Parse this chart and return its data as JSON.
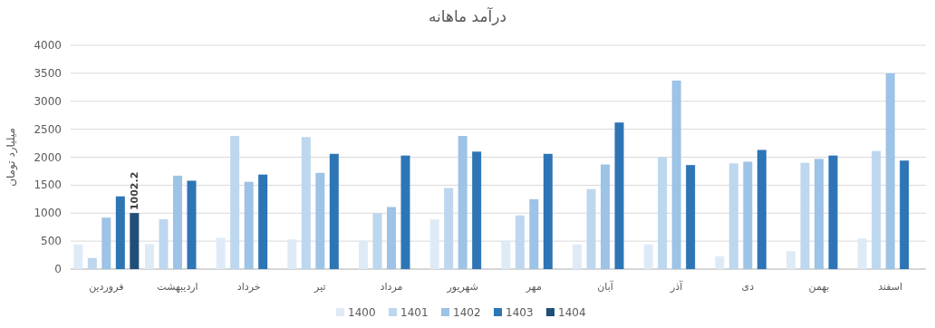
{
  "chart_data": {
    "type": "bar",
    "title": "درآمد ماهانه",
    "ylabel": "میلیارد تومان",
    "categories": [
      "فروردین",
      "اردیبهشت",
      "خرداد",
      "تیر",
      "مرداد",
      "شهریور",
      "مهر",
      "آبان",
      "آذر",
      "دی",
      "بهمن",
      "اسفند"
    ],
    "series": [
      {
        "name": "1400",
        "color": "#deebf7",
        "values": [
          440,
          450,
          560,
          530,
          510,
          890,
          510,
          440,
          440,
          230,
          320,
          550
        ]
      },
      {
        "name": "1401",
        "color": "#bdd7ee",
        "values": [
          200,
          890,
          2380,
          2360,
          1000,
          1450,
          960,
          1430,
          2000,
          1890,
          1900,
          2110
        ]
      },
      {
        "name": "1402",
        "color": "#9dc3e6",
        "values": [
          920,
          1670,
          1560,
          1720,
          1110,
          2380,
          1250,
          1870,
          3370,
          1920,
          1970,
          3500
        ]
      },
      {
        "name": "1403",
        "color": "#2e75b6",
        "values": [
          1300,
          1580,
          1690,
          2060,
          2030,
          2100,
          2060,
          2620,
          1860,
          2130,
          2030,
          1940
        ]
      },
      {
        "name": "1404",
        "color": "#1f4e79",
        "values": [
          1002.2,
          null,
          null,
          null,
          null,
          null,
          null,
          null,
          null,
          null,
          null,
          null
        ],
        "value_labels": [
          "1002.2",
          null,
          null,
          null,
          null,
          null,
          null,
          null,
          null,
          null,
          null,
          null
        ]
      }
    ],
    "ylim": [
      0,
      4000
    ],
    "yticks": [
      0,
      500,
      1000,
      1500,
      2000,
      2500,
      3000,
      3500,
      4000
    ],
    "grid": "y",
    "legend": "bottom"
  }
}
